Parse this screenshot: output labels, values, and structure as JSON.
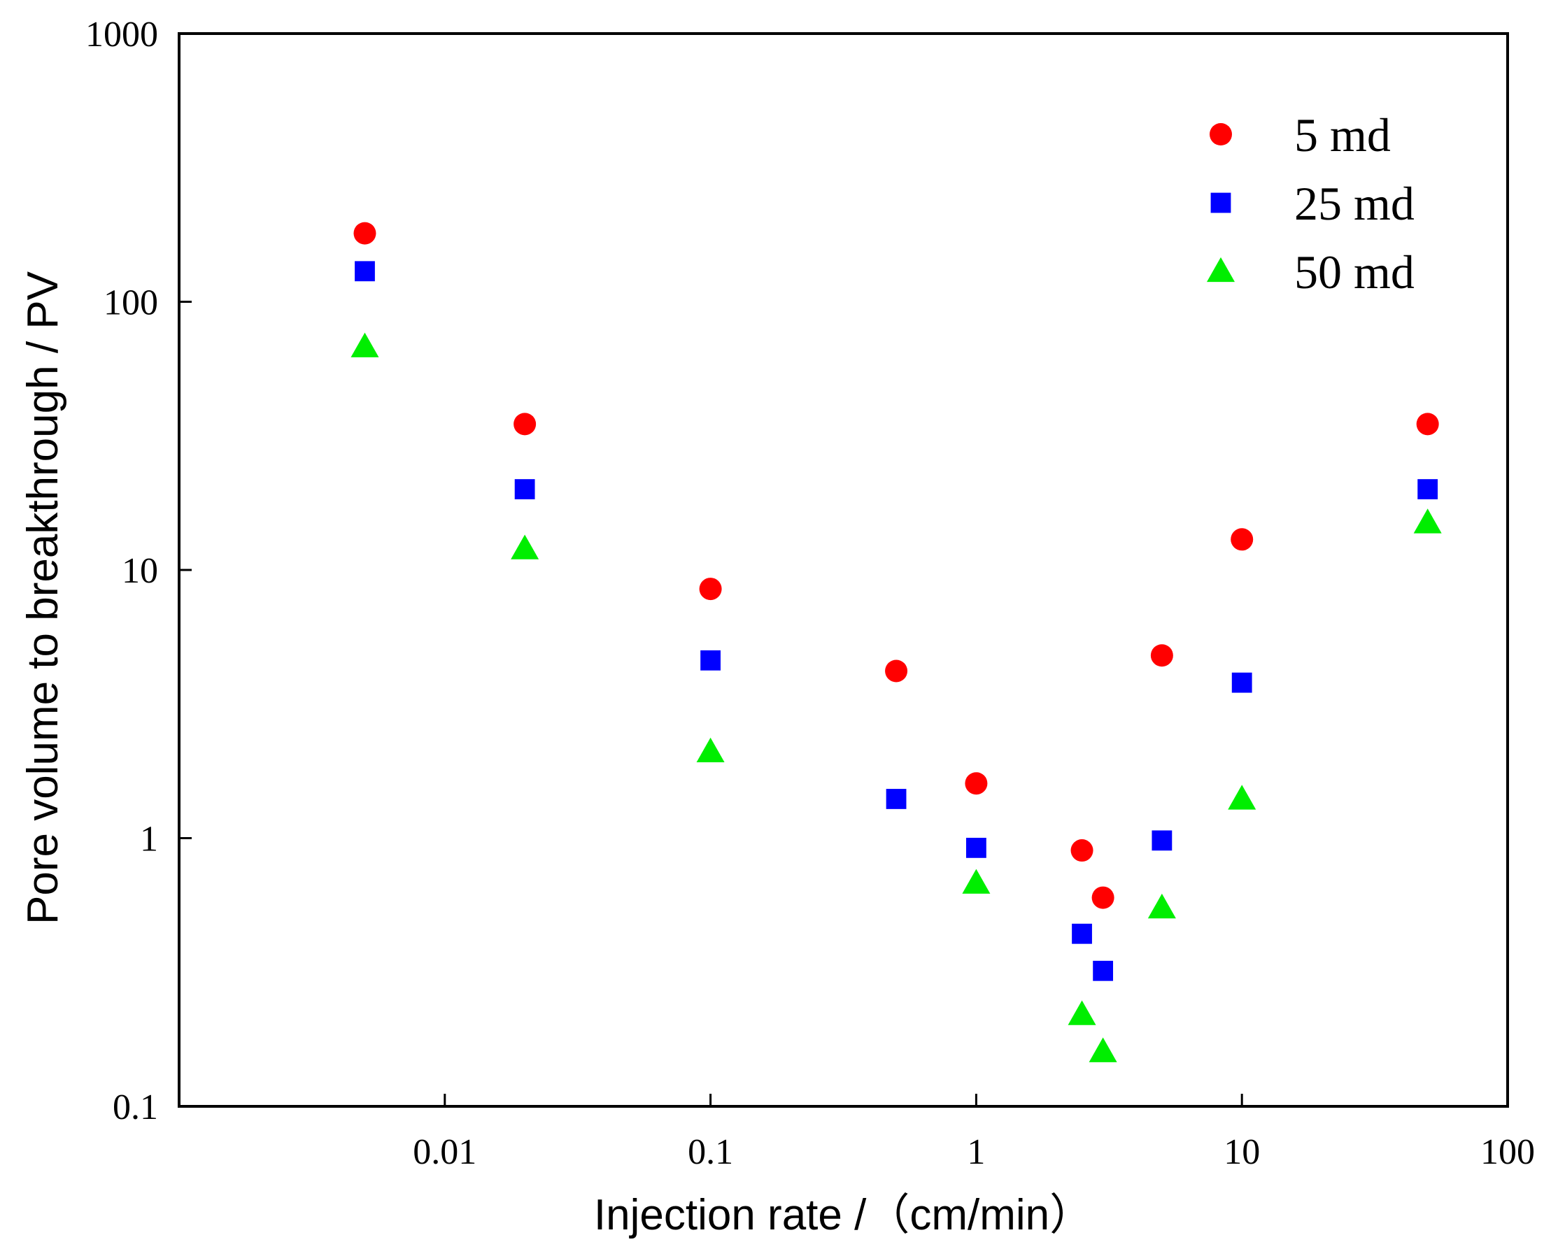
{
  "chart_data": {
    "type": "scatter",
    "title": "",
    "xlabel": "Injection rate /（cm/min）",
    "ylabel": "Pore volume to breakthrough / PV",
    "xscale": "log",
    "yscale": "log",
    "xlim": [
      0.001,
      100
    ],
    "ylim": [
      0.1,
      1000
    ],
    "x_ticks": [
      {
        "value": 0.01,
        "label": "0.01"
      },
      {
        "value": 0.1,
        "label": "0.1"
      },
      {
        "value": 1,
        "label": "1"
      },
      {
        "value": 10,
        "label": "10"
      },
      {
        "value": 100,
        "label": "100"
      }
    ],
    "y_ticks": [
      {
        "value": 0.1,
        "label": "0.1"
      },
      {
        "value": 1,
        "label": "1"
      },
      {
        "value": 10,
        "label": "10"
      },
      {
        "value": 100,
        "label": "100"
      },
      {
        "value": 1000,
        "label": "1000"
      }
    ],
    "grid": false,
    "legend_position": "top-right",
    "series": [
      {
        "name": "5 md",
        "marker": "circle",
        "color": "#ff0000",
        "points": [
          {
            "x": 0.005,
            "y": 180
          },
          {
            "x": 0.02,
            "y": 35
          },
          {
            "x": 0.1,
            "y": 8.5
          },
          {
            "x": 0.5,
            "y": 4.2
          },
          {
            "x": 1,
            "y": 1.6
          },
          {
            "x": 2.5,
            "y": 0.9
          },
          {
            "x": 3,
            "y": 0.6
          },
          {
            "x": 5,
            "y": 4.8
          },
          {
            "x": 10,
            "y": 13
          },
          {
            "x": 50,
            "y": 35
          }
        ]
      },
      {
        "name": "25 md",
        "marker": "square",
        "color": "#0000ff",
        "points": [
          {
            "x": 0.005,
            "y": 130
          },
          {
            "x": 0.02,
            "y": 20
          },
          {
            "x": 0.1,
            "y": 4.6
          },
          {
            "x": 0.5,
            "y": 1.4
          },
          {
            "x": 1,
            "y": 0.92
          },
          {
            "x": 2.5,
            "y": 0.44
          },
          {
            "x": 3,
            "y": 0.32
          },
          {
            "x": 5,
            "y": 0.98
          },
          {
            "x": 10,
            "y": 3.8
          },
          {
            "x": 50,
            "y": 20
          }
        ]
      },
      {
        "name": "50 md",
        "marker": "triangle",
        "color": "#00ee00",
        "points": [
          {
            "x": 0.005,
            "y": 68
          },
          {
            "x": 0.02,
            "y": 12
          },
          {
            "x": 0.1,
            "y": 2.1
          },
          {
            "x": 1,
            "y": 0.68
          },
          {
            "x": 2.5,
            "y": 0.22
          },
          {
            "x": 3,
            "y": 0.16
          },
          {
            "x": 5,
            "y": 0.55
          },
          {
            "x": 10,
            "y": 1.4
          },
          {
            "x": 50,
            "y": 15
          }
        ]
      }
    ]
  }
}
